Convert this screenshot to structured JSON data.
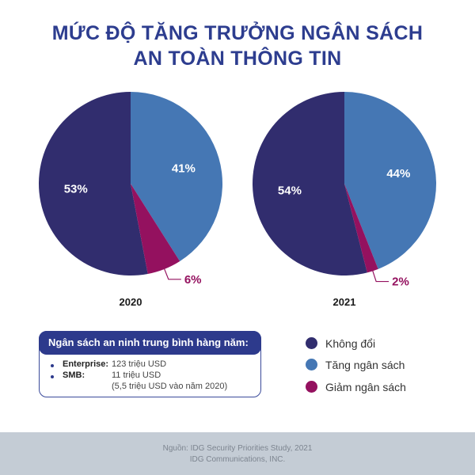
{
  "title": {
    "line1": "MỨC ĐỘ TĂNG TRƯỞNG NGÂN SÁCH",
    "line2": "AN TOÀN THÔNG TIN"
  },
  "colors": {
    "title": "#2d3d8f",
    "unchanged": "#312d6e",
    "increase": "#4577b4",
    "decrease": "#94115f"
  },
  "chart_data": [
    {
      "type": "pie",
      "title": "2020",
      "categories": [
        "Không đổi",
        "Tăng ngân sách",
        "Giảm ngân sách"
      ],
      "values": [
        53,
        41,
        6
      ],
      "labels": [
        "53%",
        "41%",
        "6%"
      ]
    },
    {
      "type": "pie",
      "title": "2021",
      "categories": [
        "Không đổi",
        "Tăng ngân sách",
        "Giảm ngân sách"
      ],
      "values": [
        54,
        44,
        2
      ],
      "labels": [
        "54%",
        "44%",
        "2%"
      ]
    }
  ],
  "legend": {
    "items": [
      {
        "label": "Không đổi",
        "color": "#312d6e"
      },
      {
        "label": "Tăng ngân sách",
        "color": "#4577b4"
      },
      {
        "label": "Giảm ngân sách",
        "color": "#94115f"
      }
    ]
  },
  "budget_box": {
    "heading": "Ngân sách an ninh trung bình hàng năm:",
    "rows": [
      {
        "label": "Enterprise:",
        "value": "123 triệu USD"
      },
      {
        "label": "SMB:",
        "value": "11 triệu USD"
      }
    ],
    "note": "(5,5 triệu USD vào năm 2020)"
  },
  "footer": {
    "source": "Nguồn: IDG Security Priorities Study, 2021",
    "org": "IDG Communications, INC."
  }
}
